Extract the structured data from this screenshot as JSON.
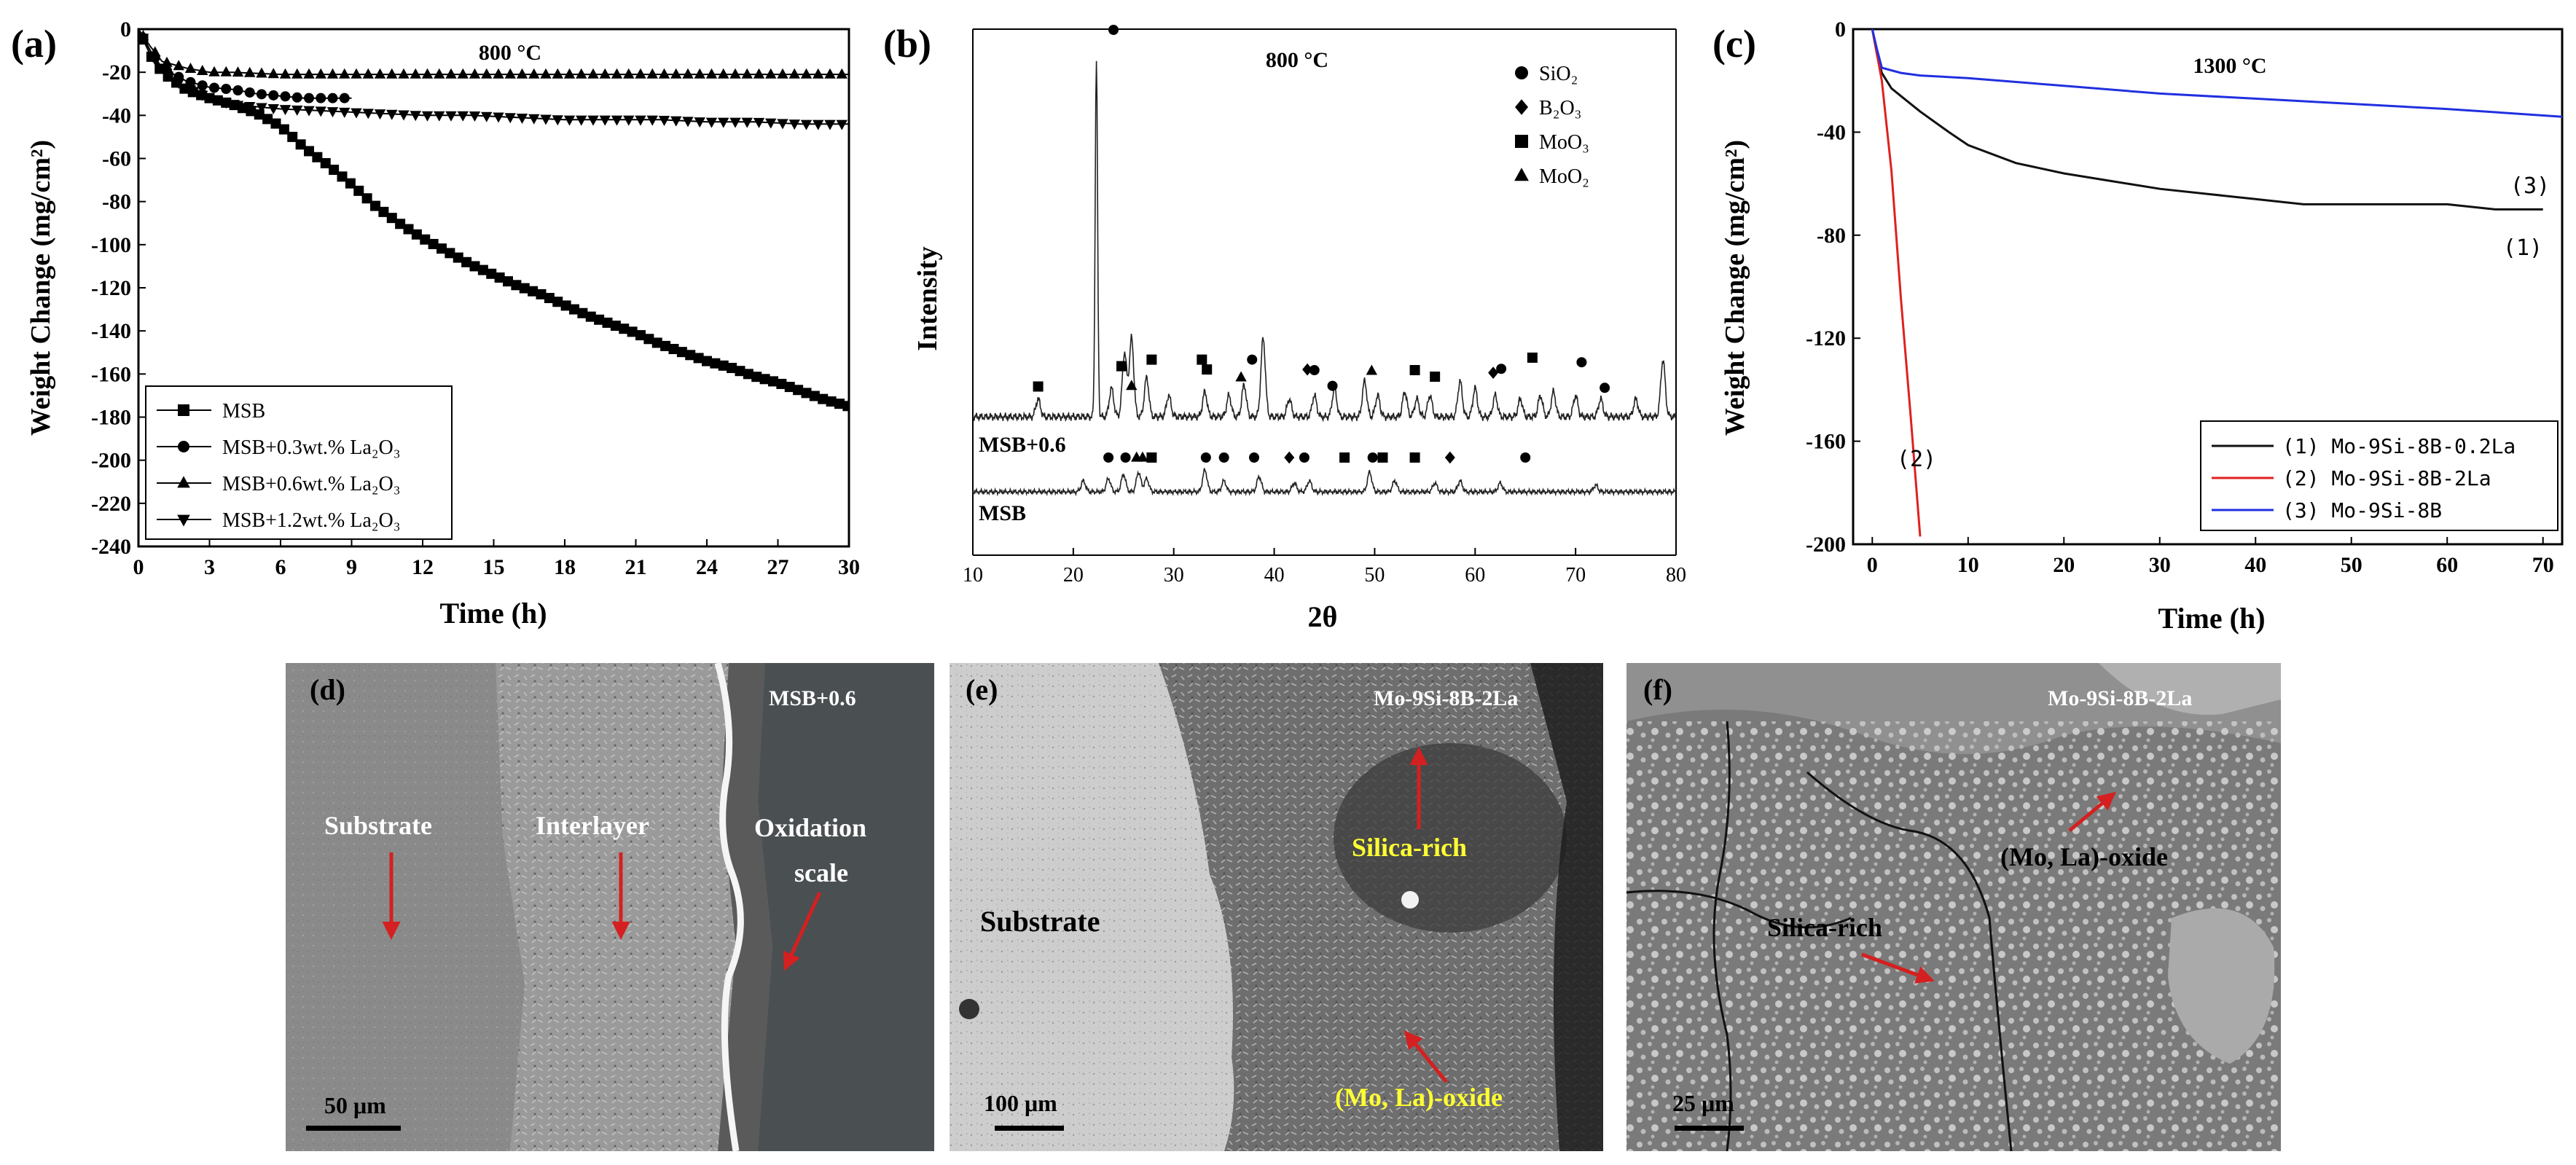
{
  "panel_labels": [
    "(a)",
    "(b)",
    "(c)",
    "(d)",
    "(e)",
    "(f)"
  ],
  "chart_data": [
    {
      "panel": "(a)",
      "type": "line",
      "annotation": "800 °C",
      "xlabel": "Time (h)",
      "ylabel": "Weight Change (mg/cm²)",
      "xlim": [
        0,
        30
      ],
      "ylim": [
        -240,
        0
      ],
      "xticks": [
        0,
        3,
        6,
        9,
        12,
        15,
        18,
        21,
        24,
        27,
        30
      ],
      "yticks": [
        0,
        -20,
        -40,
        -60,
        -80,
        -100,
        -120,
        -140,
        -160,
        -180,
        -200,
        -220,
        -240
      ],
      "legend_position": "bottom-left",
      "legend": [
        "MSB",
        "MSB+0.3wt.% La₂O₃",
        "MSB+0.6wt.% La₂O₃",
        "MSB+1.2wt.% La₂O₃"
      ],
      "series": [
        {
          "name": "MSB",
          "marker": "square",
          "x": [
            0,
            0.5,
            1,
            2,
            3,
            4,
            5,
            6,
            7,
            8,
            9,
            10,
            11,
            12,
            13,
            14,
            15,
            16,
            17,
            18,
            19,
            20,
            21,
            22,
            23,
            24,
            25,
            26,
            27,
            28,
            29,
            30
          ],
          "y": [
            0,
            -12,
            -20,
            -28,
            -32,
            -35,
            -39,
            -45,
            -55,
            -63,
            -72,
            -82,
            -90,
            -97,
            -103,
            -109,
            -114,
            -119,
            -123,
            -128,
            -133,
            -137,
            -141,
            -146,
            -150,
            -154,
            -157,
            -161,
            -164,
            -168,
            -172,
            -175
          ]
        },
        {
          "name": "MSB+0.3wt.% La₂O₃",
          "marker": "circle",
          "x": [
            0,
            0.5,
            1,
            2,
            3,
            4,
            5,
            6,
            7,
            8,
            9
          ],
          "y": [
            0,
            -10,
            -18,
            -24,
            -27,
            -28,
            -30,
            -31,
            -32,
            -32,
            -32
          ]
        },
        {
          "name": "MSB+0.6wt.% La₂O₃",
          "marker": "triangle-up",
          "x": [
            0,
            0.5,
            1,
            2,
            3,
            4,
            6,
            8,
            10,
            12,
            14,
            16,
            18,
            20,
            22,
            24,
            26,
            28,
            30
          ],
          "y": [
            0,
            -8,
            -15,
            -18,
            -20,
            -20,
            -21,
            -21,
            -21,
            -21,
            -21,
            -21,
            -21,
            -21,
            -21,
            -21,
            -21,
            -21,
            -21
          ]
        },
        {
          "name": "MSB+1.2wt.% La₂O₃",
          "marker": "triangle-down",
          "x": [
            0,
            0.5,
            1,
            2,
            3,
            4,
            6,
            8,
            10,
            12,
            14,
            16,
            18,
            20,
            22,
            24,
            26,
            28,
            30
          ],
          "y": [
            0,
            -10,
            -20,
            -27,
            -32,
            -35,
            -37,
            -38,
            -39,
            -40,
            -40,
            -41,
            -42,
            -42,
            -42,
            -43,
            -43,
            -44,
            -44
          ]
        }
      ]
    },
    {
      "panel": "(b)",
      "type": "line",
      "annotation": "800 °C",
      "xlabel": "2θ",
      "ylabel": "Intensity",
      "xlim": [
        10,
        80
      ],
      "xticks": [
        10,
        20,
        30,
        40,
        50,
        60,
        70,
        80
      ],
      "legend_position": "top-right",
      "legend": [
        "SiO₂",
        "B₂O₃",
        "MoO₃",
        "MoO₂"
      ],
      "series": [
        {
          "name": "MSB+0.6",
          "peaks": [
            {
              "x": 16.5,
              "h": 0.05
            },
            {
              "x": 22.3,
              "h": 1.0
            },
            {
              "x": 23.8,
              "h": 0.08
            },
            {
              "x": 25.1,
              "h": 0.18
            },
            {
              "x": 25.8,
              "h": 0.22
            },
            {
              "x": 27.3,
              "h": 0.11
            },
            {
              "x": 29.5,
              "h": 0.06
            },
            {
              "x": 33.1,
              "h": 0.07
            },
            {
              "x": 35.5,
              "h": 0.06
            },
            {
              "x": 37.0,
              "h": 0.09
            },
            {
              "x": 38.9,
              "h": 0.22
            },
            {
              "x": 41.5,
              "h": 0.05
            },
            {
              "x": 44.0,
              "h": 0.06
            },
            {
              "x": 46.0,
              "h": 0.08
            },
            {
              "x": 49.0,
              "h": 0.1
            },
            {
              "x": 50.3,
              "h": 0.06
            },
            {
              "x": 53.0,
              "h": 0.07
            },
            {
              "x": 54.2,
              "h": 0.05
            },
            {
              "x": 55.5,
              "h": 0.06
            },
            {
              "x": 58.5,
              "h": 0.1
            },
            {
              "x": 60.0,
              "h": 0.08
            },
            {
              "x": 62.0,
              "h": 0.06
            },
            {
              "x": 64.5,
              "h": 0.05
            },
            {
              "x": 66.5,
              "h": 0.06
            },
            {
              "x": 67.8,
              "h": 0.07
            },
            {
              "x": 70.0,
              "h": 0.06
            },
            {
              "x": 72.5,
              "h": 0.05
            },
            {
              "x": 76.0,
              "h": 0.05
            },
            {
              "x": 78.7,
              "h": 0.16
            }
          ]
        },
        {
          "name": "MSB",
          "peaks": [
            {
              "x": 21.0,
              "h": 0.05
            },
            {
              "x": 23.5,
              "h": 0.06
            },
            {
              "x": 25.0,
              "h": 0.08
            },
            {
              "x": 26.5,
              "h": 0.09
            },
            {
              "x": 27.3,
              "h": 0.06
            },
            {
              "x": 33.1,
              "h": 0.1
            },
            {
              "x": 35.0,
              "h": 0.05
            },
            {
              "x": 38.5,
              "h": 0.07
            },
            {
              "x": 42.0,
              "h": 0.04
            },
            {
              "x": 43.5,
              "h": 0.05
            },
            {
              "x": 49.5,
              "h": 0.09
            },
            {
              "x": 52.0,
              "h": 0.05
            },
            {
              "x": 56.0,
              "h": 0.04
            },
            {
              "x": 58.5,
              "h": 0.05
            },
            {
              "x": 62.5,
              "h": 0.04
            },
            {
              "x": 72.0,
              "h": 0.03
            }
          ]
        }
      ],
      "phase_markers_top": [
        {
          "x": 24.0,
          "phase": "SiO₂",
          "pos": "top"
        },
        {
          "x": 16.5,
          "phase": "MoO₃",
          "pos": "upper"
        },
        {
          "x": 24.8,
          "phase": "MoO₃",
          "pos": "upper"
        },
        {
          "x": 25.8,
          "phase": "MoO₂",
          "pos": "upper"
        },
        {
          "x": 27.8,
          "phase": "MoO₃",
          "pos": "upper"
        },
        {
          "x": 32.8,
          "phase": "MoO₃",
          "pos": "upper"
        },
        {
          "x": 33.3,
          "phase": "MoO₃",
          "pos": "upper"
        },
        {
          "x": 36.7,
          "phase": "MoO₂",
          "pos": "upper"
        },
        {
          "x": 37.8,
          "phase": "SiO₂",
          "pos": "upper"
        },
        {
          "x": 43.3,
          "phase": "B₂O₃",
          "pos": "upper"
        },
        {
          "x": 44.0,
          "phase": "SiO₂",
          "pos": "upper"
        },
        {
          "x": 45.8,
          "phase": "SiO₂",
          "pos": "upper"
        },
        {
          "x": 49.7,
          "phase": "MoO₂",
          "pos": "upper"
        },
        {
          "x": 54.0,
          "phase": "MoO₃",
          "pos": "upper"
        },
        {
          "x": 56.0,
          "phase": "MoO₃",
          "pos": "upper"
        },
        {
          "x": 61.8,
          "phase": "B₂O₃",
          "pos": "upper"
        },
        {
          "x": 62.6,
          "phase": "SiO₂",
          "pos": "upper"
        },
        {
          "x": 65.7,
          "phase": "MoO₃",
          "pos": "upper"
        },
        {
          "x": 70.6,
          "phase": "SiO₂",
          "pos": "upper"
        },
        {
          "x": 72.9,
          "phase": "SiO₂",
          "pos": "upper"
        }
      ],
      "phase_markers_bottom": [
        {
          "x": 23.5,
          "phase": "SiO₂"
        },
        {
          "x": 25.2,
          "phase": "SiO₂"
        },
        {
          "x": 26.3,
          "phase": "MoO₂"
        },
        {
          "x": 26.9,
          "phase": "MoO₂"
        },
        {
          "x": 27.8,
          "phase": "MoO₃"
        },
        {
          "x": 33.2,
          "phase": "SiO₂"
        },
        {
          "x": 35.0,
          "phase": "SiO₂"
        },
        {
          "x": 38.0,
          "phase": "SiO₂"
        },
        {
          "x": 41.5,
          "phase": "B₂O₃"
        },
        {
          "x": 43.0,
          "phase": "SiO₂"
        },
        {
          "x": 47.0,
          "phase": "MoO₃"
        },
        {
          "x": 49.8,
          "phase": "SiO₂"
        },
        {
          "x": 50.8,
          "phase": "MoO₃"
        },
        {
          "x": 54.0,
          "phase": "MoO₃"
        },
        {
          "x": 57.5,
          "phase": "B₂O₃"
        },
        {
          "x": 65.0,
          "phase": "SiO₂"
        }
      ]
    },
    {
      "panel": "(c)",
      "type": "line",
      "annotation": "1300 °C",
      "xlabel": "Time (h)",
      "ylabel": "Weight Change (mg/cm²)",
      "xlim": [
        -2,
        72
      ],
      "ylim": [
        -200,
        0
      ],
      "xticks": [
        0,
        10,
        20,
        30,
        40,
        50,
        60,
        70
      ],
      "yticks": [
        0,
        -40,
        -80,
        -120,
        -160,
        -200
      ],
      "legend_position": "bottom-right",
      "legend": [
        "(1) Mo-9Si-8B-0.2La",
        "(2) Mo-9Si-8B-2La",
        "(3) Mo-9Si-8B"
      ],
      "series": [
        {
          "name": "(1) Mo-9Si-8B-0.2La",
          "color": "#111111",
          "curve_label": "(1)",
          "x": [
            0,
            0.5,
            1,
            2,
            3,
            5,
            8,
            10,
            15,
            20,
            25,
            30,
            35,
            40,
            45,
            50,
            55,
            60,
            65,
            70
          ],
          "y": [
            0,
            -10,
            -17,
            -23,
            -26,
            -32,
            -40,
            -45,
            -52,
            -56,
            -59,
            -62,
            -64,
            -66,
            -68,
            -68,
            -68,
            -68,
            -70,
            -70
          ]
        },
        {
          "name": "(2) Mo-9Si-8B-2La",
          "color": "#e02020",
          "curve_label": "(2)",
          "x": [
            0,
            0.5,
            1,
            2,
            3,
            4,
            5
          ],
          "y": [
            0,
            -10,
            -20,
            -55,
            -105,
            -150,
            -197
          ]
        },
        {
          "name": "(3) Mo-9Si-8B",
          "color": "#2030e0",
          "curve_label": "(3)",
          "x": [
            0,
            0.5,
            1,
            3,
            5,
            10,
            20,
            30,
            40,
            50,
            60,
            72
          ],
          "y": [
            0,
            -8,
            -15,
            -17,
            -18,
            -19,
            -22,
            -25,
            -27,
            -29,
            -31,
            -34
          ]
        }
      ]
    }
  ],
  "micrographs": {
    "d": {
      "tag": "MSB+0.6",
      "labels": [
        "Substrate",
        "Interlayer",
        "Oxidation",
        "scale"
      ],
      "scale_bar": "50 μm"
    },
    "e": {
      "tag": "Mo-9Si-8B-2La",
      "labels": [
        "Substrate",
        "Silica-rich",
        "(Mo, La)-oxide"
      ],
      "scale_bar": "100 μm"
    },
    "f": {
      "tag": "Mo-9Si-8B-2La",
      "labels": [
        "Silica-rich",
        "(Mo, La)-oxide"
      ],
      "scale_bar": "25 μm"
    }
  },
  "colors": {
    "arrow": "#d42020",
    "highlight_text": "#ffff33"
  }
}
